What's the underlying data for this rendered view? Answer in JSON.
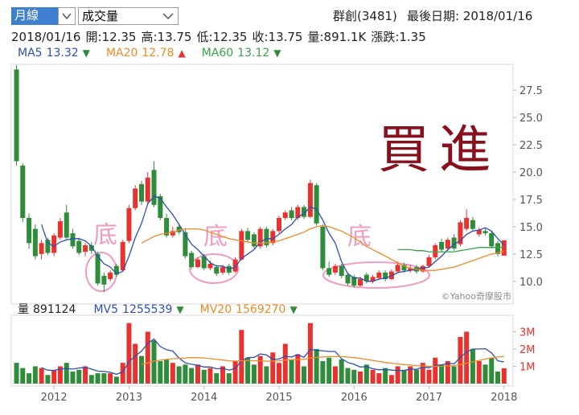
{
  "header": {
    "period_select": "月線",
    "indicator_select": "成交量",
    "stock": "群創(3481)",
    "last_date": "最後日期: 2018/01/16",
    "info": [
      "2018/01/16",
      "開:12.35",
      "高:13.75",
      "低:12.35",
      "收:13.75",
      "量:891.1K",
      "漲跌:1.35"
    ]
  },
  "chart_data": [
    {
      "type": "candlestick",
      "x": [
        2011.5,
        2011.583,
        2011.667,
        2011.75,
        2011.833,
        2011.917,
        2012,
        2012.083,
        2012.167,
        2012.25,
        2012.333,
        2012.417,
        2012.5,
        2012.583,
        2012.667,
        2012.75,
        2012.833,
        2012.917,
        2013,
        2013.083,
        2013.167,
        2013.25,
        2013.333,
        2013.417,
        2013.5,
        2013.583,
        2013.667,
        2013.75,
        2013.833,
        2013.917,
        2014,
        2014.083,
        2014.167,
        2014.25,
        2014.333,
        2014.417,
        2014.5,
        2014.583,
        2014.667,
        2014.75,
        2014.833,
        2014.917,
        2015,
        2015.083,
        2015.167,
        2015.25,
        2015.333,
        2015.417,
        2015.5,
        2015.583,
        2015.667,
        2015.75,
        2015.833,
        2015.917,
        2016,
        2016.083,
        2016.167,
        2016.25,
        2016.333,
        2016.417,
        2016.5,
        2016.583,
        2016.667,
        2016.75,
        2016.833,
        2016.917,
        2017,
        2017.083,
        2017.167,
        2017.25,
        2017.333,
        2017.417,
        2017.5,
        2017.583,
        2017.667,
        2017.75,
        2017.833,
        2017.917,
        2018
      ],
      "open": [
        29.4,
        20.6,
        15.8,
        14.8,
        12.5,
        13.8,
        12.6,
        14.0,
        16.3,
        14.4,
        13.7,
        12.7,
        13.3,
        12.5,
        10.5,
        10.2,
        11.4,
        11.0,
        13.7,
        16.7,
        18.9,
        17.3,
        20.2,
        17.8,
        15.8,
        14.2,
        15.0,
        14.5,
        12.6,
        11.3,
        12.3,
        11.2,
        11.3,
        10.8,
        11.4,
        10.9,
        12.0,
        14.6,
        14.3,
        13.2,
        14.8,
        13.5,
        14.6,
        15.8,
        16.5,
        15.8,
        16.8,
        15.9,
        18.8,
        15.0,
        11.2,
        10.8,
        11.4,
        10.6,
        10.4,
        9.6,
        10.6,
        10.0,
        10.3,
        10.8,
        10.2,
        10.9,
        11.5,
        11.0,
        11.3,
        10.9,
        11.4,
        12.2,
        13.6,
        13.0,
        14.0,
        13.4,
        14.8,
        15.6,
        14.3,
        14.6,
        14.4,
        13.5,
        12.35
      ],
      "high": [
        29.8,
        20.8,
        16.2,
        15.2,
        13.8,
        14.0,
        14.4,
        15.8,
        17.0,
        14.8,
        14.0,
        13.5,
        13.6,
        12.7,
        10.8,
        11.0,
        11.6,
        13.8,
        17.0,
        18.8,
        19.2,
        20.0,
        21.0,
        18.0,
        16.2,
        15.0,
        15.3,
        14.8,
        12.8,
        12.2,
        12.5,
        11.9,
        11.5,
        11.5,
        11.6,
        12.2,
        14.8,
        14.9,
        14.5,
        15.0,
        15.0,
        14.8,
        16.0,
        16.5,
        16.8,
        17.0,
        17.0,
        19.3,
        19.0,
        15.2,
        11.8,
        11.6,
        11.6,
        10.8,
        10.6,
        10.4,
        10.8,
        10.6,
        11.0,
        11.0,
        11.1,
        11.8,
        11.7,
        11.5,
        11.5,
        11.5,
        12.4,
        13.5,
        13.9,
        14.0,
        14.3,
        15.6,
        16.6,
        15.9,
        14.9,
        14.9,
        14.6,
        13.7,
        13.75
      ],
      "low": [
        20.6,
        15.4,
        13.0,
        12.0,
        12.0,
        12.4,
        12.3,
        13.8,
        13.8,
        13.0,
        12.4,
        12.3,
        12.5,
        9.6,
        9.0,
        10.0,
        10.4,
        10.9,
        13.5,
        16.5,
        17.0,
        17.1,
        16.8,
        15.6,
        14.0,
        14.0,
        14.3,
        12.1,
        11.1,
        11.2,
        11.0,
        11.0,
        10.5,
        10.6,
        10.6,
        10.8,
        11.9,
        13.6,
        13.0,
        13.0,
        13.1,
        13.3,
        14.4,
        15.6,
        15.6,
        15.6,
        15.7,
        15.8,
        15.1,
        11.0,
        10.4,
        10.6,
        10.3,
        9.6,
        9.4,
        9.5,
        9.8,
        9.8,
        10.1,
        10.0,
        10.1,
        10.8,
        10.8,
        10.8,
        10.7,
        10.8,
        11.3,
        12.0,
        12.7,
        12.8,
        12.8,
        13.2,
        14.6,
        14.6,
        14.1,
        14.2,
        13.0,
        12.3,
        12.35
      ],
      "close": [
        21.0,
        15.8,
        13.5,
        12.3,
        13.5,
        12.6,
        14.2,
        15.5,
        14.0,
        13.2,
        12.6,
        13.3,
        12.8,
        9.8,
        9.7,
        10.8,
        10.6,
        13.6,
        16.7,
        18.5,
        17.3,
        19.5,
        17.0,
        15.8,
        14.2,
        14.6,
        14.5,
        12.3,
        11.3,
        12.0,
        11.2,
        11.6,
        10.7,
        11.3,
        10.8,
        12.0,
        14.6,
        13.8,
        13.2,
        14.8,
        13.3,
        14.6,
        15.8,
        16.3,
        15.8,
        16.8,
        15.9,
        19.0,
        15.3,
        11.2,
        10.6,
        11.4,
        10.5,
        9.8,
        9.6,
        10.2,
        10.0,
        10.4,
        10.8,
        10.2,
        10.9,
        11.5,
        11.0,
        11.2,
        10.9,
        11.4,
        12.2,
        13.3,
        12.9,
        13.8,
        13.0,
        15.4,
        15.8,
        14.8,
        14.7,
        14.4,
        13.2,
        12.5,
        13.75
      ],
      "up_color": "#e8322f",
      "down_color": "#2f8c3a",
      "series": [
        {
          "name": "MA5",
          "color": "#2d4fb0",
          "trend": "▼",
          "trend_color": "#2f8c3a",
          "values": [
            null,
            null,
            null,
            null,
            15.2,
            13.5,
            13.2,
            13.6,
            13.8,
            13.9,
            13.9,
            13.7,
            13.2,
            12.3,
            11.6,
            11.3,
            10.7,
            10.9,
            12.3,
            14.0,
            15.3,
            17.1,
            17.8,
            17.6,
            16.8,
            16.1,
            15.2,
            14.3,
            13.4,
            12.9,
            12.3,
            11.7,
            11.4,
            11.4,
            11.1,
            11.3,
            12.1,
            12.5,
            12.9,
            13.6,
            13.9,
            13.9,
            14.3,
            14.8,
            15.2,
            15.9,
            16.2,
            16.8,
            16.6,
            15.6,
            14.4,
            13.5,
            11.8,
            10.7,
            10.3,
            10.3,
            10.0,
            10.0,
            10.2,
            10.3,
            10.5,
            10.8,
            10.9,
            11.0,
            11.1,
            11.2,
            11.3,
            11.8,
            12.3,
            12.9,
            13.4,
            13.7,
            14.3,
            14.6,
            14.7,
            14.9,
            14.6,
            13.9,
            13.32
          ]
        },
        {
          "name": "MA20",
          "color": "#f08a24",
          "trend": "▲",
          "trend_color": "#e8322f",
          "values": [
            null,
            null,
            null,
            null,
            null,
            null,
            null,
            null,
            null,
            null,
            null,
            null,
            null,
            null,
            null,
            null,
            null,
            null,
            null,
            null,
            13.5,
            13.8,
            14.1,
            14.3,
            14.4,
            14.5,
            14.7,
            14.8,
            14.8,
            14.8,
            14.7,
            14.5,
            14.3,
            14.1,
            13.9,
            13.8,
            13.7,
            13.6,
            13.5,
            13.5,
            13.5,
            13.6,
            13.7,
            13.9,
            14.1,
            14.3,
            14.5,
            14.8,
            15.0,
            15.1,
            15.0,
            14.8,
            14.6,
            14.3,
            14.0,
            13.6,
            13.2,
            12.9,
            12.6,
            12.3,
            12.0,
            11.7,
            11.4,
            11.2,
            11.1,
            11.0,
            11.0,
            11.0,
            11.1,
            11.2,
            11.3,
            11.5,
            11.7,
            11.9,
            12.1,
            12.3,
            12.5,
            12.6,
            12.78
          ]
        },
        {
          "name": "MA60",
          "color": "#3aa34a",
          "trend": "▼",
          "trend_color": "#2f8c3a",
          "values": [
            null,
            null,
            null,
            null,
            null,
            null,
            null,
            null,
            null,
            null,
            null,
            null,
            null,
            null,
            null,
            null,
            null,
            null,
            null,
            null,
            null,
            null,
            null,
            null,
            null,
            null,
            null,
            null,
            null,
            null,
            null,
            null,
            null,
            null,
            null,
            null,
            null,
            null,
            null,
            null,
            null,
            null,
            null,
            null,
            null,
            null,
            null,
            null,
            null,
            null,
            null,
            null,
            null,
            null,
            null,
            null,
            null,
            null,
            null,
            null,
            null,
            12.9,
            12.9,
            12.9,
            12.8,
            12.8,
            12.7,
            12.7,
            12.7,
            12.7,
            12.7,
            12.8,
            12.9,
            13.0,
            13.1,
            13.1,
            13.1,
            13.1,
            13.12
          ]
        }
      ],
      "xlim": [
        2011.43,
        2018.12
      ],
      "ylim": [
        7.92,
        29.87
      ],
      "yticks": [
        {
          "value": 10,
          "label": "10.0"
        },
        12.5,
        {
          "value": 15,
          "label": "15.0"
        },
        17.5,
        {
          "value": 20,
          "label": "20.0"
        },
        22.5,
        {
          "value": 25,
          "label": "25.0"
        },
        27.5
      ],
      "annotations": {
        "big": "買進",
        "bottoms": [
          "底",
          "底",
          "底"
        ],
        "watermark": "©Yahoo奇摩股市"
      }
    },
    {
      "type": "bar",
      "label": "量",
      "trend": "▼",
      "trend_color": "#2f8c3a",
      "x": [
        2011.5,
        2011.583,
        2011.667,
        2011.75,
        2011.833,
        2011.917,
        2012,
        2012.083,
        2012.167,
        2012.25,
        2012.333,
        2012.417,
        2012.5,
        2012.583,
        2012.667,
        2012.75,
        2012.833,
        2012.917,
        2013,
        2013.083,
        2013.167,
        2013.25,
        2013.333,
        2013.417,
        2013.5,
        2013.583,
        2013.667,
        2013.75,
        2013.833,
        2013.917,
        2014,
        2014.083,
        2014.167,
        2014.25,
        2014.333,
        2014.417,
        2014.5,
        2014.583,
        2014.667,
        2014.75,
        2014.833,
        2014.917,
        2015,
        2015.083,
        2015.167,
        2015.25,
        2015.333,
        2015.417,
        2015.5,
        2015.583,
        2015.667,
        2015.75,
        2015.833,
        2015.917,
        2016,
        2016.083,
        2016.167,
        2016.25,
        2016.333,
        2016.417,
        2016.5,
        2016.583,
        2016.667,
        2016.75,
        2016.833,
        2016.917,
        2017,
        2017.083,
        2017.167,
        2017.25,
        2017.333,
        2017.417,
        2017.5,
        2017.583,
        2017.667,
        2017.75,
        2017.833,
        2017.917,
        2018
      ],
      "values": [
        1200000,
        900000,
        600000,
        1000000,
        900000,
        500000,
        800000,
        1000000,
        1200000,
        700000,
        800000,
        1000000,
        500000,
        600000,
        600000,
        600000,
        400000,
        1200000,
        3500000,
        2300000,
        1600000,
        3000000,
        2500000,
        1300000,
        1400000,
        1200000,
        1000000,
        1100000,
        900000,
        1100000,
        800000,
        900000,
        600000,
        1000000,
        600000,
        1300000,
        3100000,
        1500000,
        1100000,
        1600000,
        1000000,
        1800000,
        1200000,
        2300000,
        1400000,
        1700000,
        1000000,
        3500000,
        2000000,
        1300000,
        1500000,
        1000000,
        1400000,
        900000,
        800000,
        700000,
        1100000,
        800000,
        600000,
        900000,
        500000,
        1000000,
        800000,
        1000000,
        800000,
        1200000,
        800000,
        1500000,
        1100000,
        1300000,
        1000000,
        2700000,
        3000000,
        2000000,
        1300000,
        1100000,
        1500000,
        700000,
        891124
      ],
      "series": [
        {
          "name": "MV5",
          "color": "#2d4fb0",
          "trend": "▼",
          "trend_color": "#2f8c3a",
          "values": [
            null,
            null,
            null,
            null,
            920000,
            780000,
            760000,
            840000,
            880000,
            840000,
            900000,
            940000,
            840000,
            720000,
            700000,
            660000,
            540000,
            680000,
            1260000,
            1600000,
            1880000,
            2320000,
            2580000,
            2140000,
            1960000,
            1880000,
            1480000,
            1200000,
            1120000,
            1060000,
            960000,
            960000,
            860000,
            880000,
            780000,
            880000,
            1320000,
            1500000,
            1520000,
            1720000,
            1660000,
            1400000,
            1420000,
            1580000,
            1540000,
            1680000,
            1520000,
            1980000,
            1920000,
            1900000,
            1860000,
            1860000,
            1440000,
            1220000,
            1120000,
            960000,
            980000,
            860000,
            800000,
            820000,
            780000,
            760000,
            760000,
            840000,
            820000,
            960000,
            920000,
            1060000,
            1080000,
            1180000,
            1140000,
            1520000,
            1820000,
            2000000,
            2000000,
            2020000,
            1780000,
            1320000,
            1255539
          ]
        },
        {
          "name": "MV20",
          "color": "#f08a24",
          "trend": "▼",
          "trend_color": "#2f8c3a",
          "values": [
            null,
            null,
            null,
            null,
            null,
            null,
            null,
            null,
            null,
            null,
            null,
            null,
            null,
            null,
            null,
            null,
            null,
            null,
            null,
            null,
            1100000,
            1200000,
            1300000,
            1350000,
            1400000,
            1440000,
            1460000,
            1480000,
            1500000,
            1500000,
            1480000,
            1440000,
            1400000,
            1360000,
            1320000,
            1300000,
            1320000,
            1340000,
            1320000,
            1320000,
            1300000,
            1300000,
            1320000,
            1360000,
            1380000,
            1400000,
            1400000,
            1480000,
            1520000,
            1540000,
            1560000,
            1560000,
            1560000,
            1540000,
            1500000,
            1460000,
            1400000,
            1340000,
            1280000,
            1220000,
            1180000,
            1140000,
            1100000,
            1080000,
            1040000,
            1020000,
            1000000,
            1000000,
            1000000,
            1020000,
            1040000,
            1100000,
            1180000,
            1260000,
            1340000,
            1420000,
            1480000,
            1540000,
            1569270
          ]
        }
      ],
      "xlim": [
        2011.43,
        2018.12
      ],
      "ylim": [
        -140000,
        3950000
      ],
      "yticks": [
        {
          "value": 1000000,
          "label": "1M"
        },
        {
          "value": 2000000,
          "label": "2M"
        },
        {
          "value": 3000000,
          "label": "3M"
        }
      ],
      "xticks": [
        2012,
        2013,
        2014,
        2015,
        2016,
        2017,
        2018
      ]
    }
  ]
}
